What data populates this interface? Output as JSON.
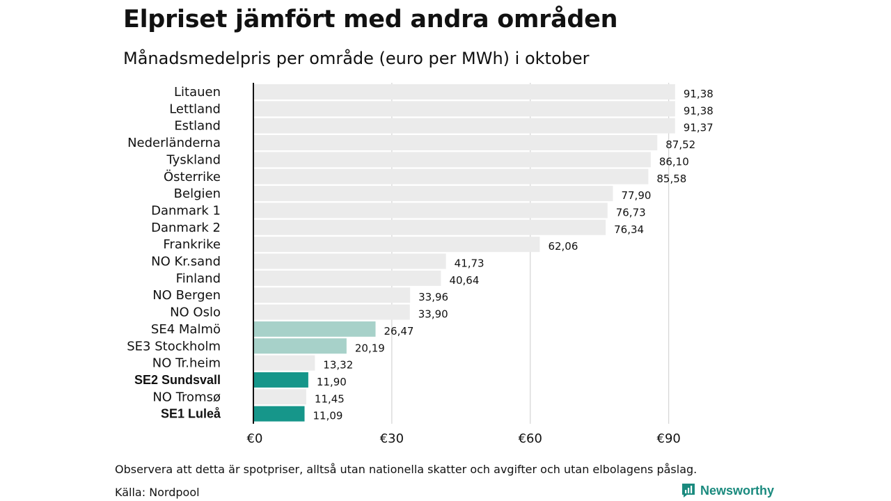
{
  "header": {
    "title": "Elpriset jämfört med andra områden",
    "subtitle": "Månadsmedelpris per område (euro per MWh) i oktober"
  },
  "footer": {
    "note": "Observera att detta är spotpriser, alltså utan nationella skatter och avgifter och utan elbolagens påslag.",
    "source": "Källa: Nordpool"
  },
  "brand": {
    "name": "Newsworthy",
    "icon": "newsworthy-logo-icon",
    "color": "#1a8a7e"
  },
  "colors": {
    "default": "#ebebeb",
    "light_teal": "#a7d1c9",
    "dark_teal": "#16968a",
    "grid": "#cccccc",
    "axis": "#111111"
  },
  "chart_data": {
    "type": "bar",
    "orientation": "horizontal",
    "title": "Elpriset jämfört med andra områden",
    "subtitle": "Månadsmedelpris per område (euro per MWh) i oktober",
    "xlim": [
      0,
      90
    ],
    "xticks": [
      0,
      30,
      60,
      90
    ],
    "xtick_labels": [
      "€0",
      "€30",
      "€60",
      "€90"
    ],
    "grid": true,
    "categories": [
      "Litauen",
      "Lettland",
      "Estland",
      "Nederländerna",
      "Tyskland",
      "Österrike",
      "Belgien",
      "Danmark 1",
      "Danmark 2",
      "Frankrike",
      "NO Kr.sand",
      "Finland",
      "NO Bergen",
      "NO Oslo",
      "SE4 Malmö",
      "SE3 Stockholm",
      "NO Tr.heim",
      "SE2 Sundsvall",
      "NO Tromsø",
      "SE1 Luleå"
    ],
    "values": [
      91.38,
      91.38,
      91.37,
      87.52,
      86.1,
      85.58,
      77.9,
      76.73,
      76.34,
      62.06,
      41.73,
      40.64,
      33.96,
      33.9,
      26.47,
      20.19,
      13.32,
      11.9,
      11.45,
      11.09
    ],
    "value_labels": [
      "91,38",
      "91,38",
      "91,37",
      "87,52",
      "86,10",
      "85,58",
      "77,90",
      "76,73",
      "76,34",
      "62,06",
      "41,73",
      "40,64",
      "33,96",
      "33,90",
      "26,47",
      "20,19",
      "13,32",
      "11,90",
      "11,45",
      "11,09"
    ],
    "highlight": [
      "default",
      "default",
      "default",
      "default",
      "default",
      "default",
      "default",
      "default",
      "default",
      "default",
      "default",
      "default",
      "default",
      "default",
      "light_teal",
      "light_teal",
      "default",
      "dark_teal",
      "default",
      "dark_teal"
    ],
    "bold_labels": [
      "SE2 Sundsvall",
      "SE1 Luleå"
    ]
  }
}
